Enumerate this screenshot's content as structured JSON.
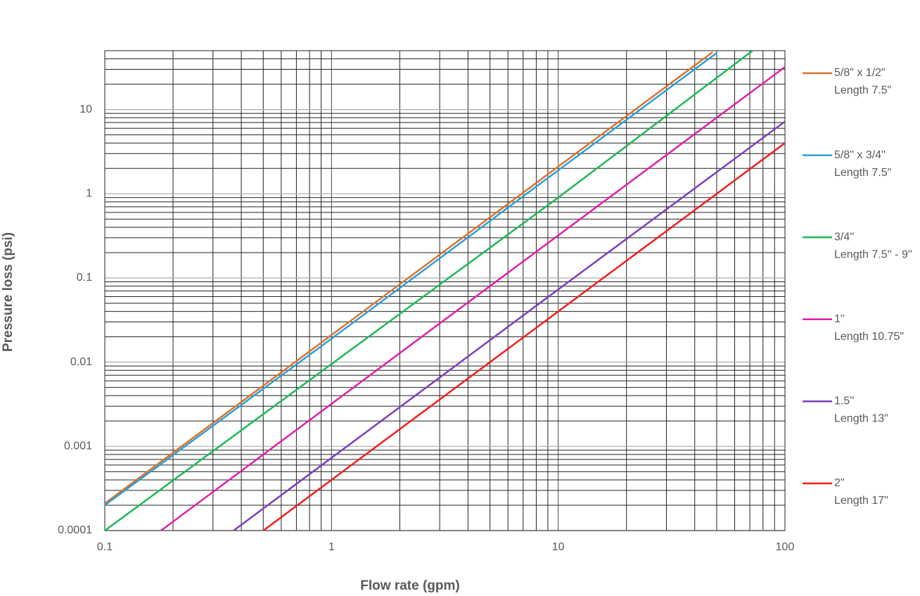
{
  "chart_data": {
    "type": "line",
    "x_label": "Flow rate (gpm)",
    "y_label": "Pressure loss (psi)",
    "xscale": "log",
    "yscale": "log",
    "xlim": [
      0.1,
      100
    ],
    "ylim": [
      0.0001,
      50
    ],
    "xticks": [
      0.1,
      1,
      10,
      100
    ],
    "yticks": [
      0.0001,
      0.001,
      0.01,
      0.1,
      1,
      10
    ],
    "grid": true,
    "minor_grid": true,
    "legend_position": "right",
    "series": [
      {
        "name": "5/8\" x 1/2\"",
        "length": "Length 7.5\"",
        "color": "#e0702a",
        "x": [
          0.1,
          1,
          10,
          48
        ],
        "values": [
          0.00021,
          0.021,
          2.1,
          48
        ]
      },
      {
        "name": "5/8\" x 3/4''",
        "length": "Length 7.5\"",
        "color": "#2aa0d8",
        "x": [
          0.1,
          1,
          10,
          50
        ],
        "values": [
          0.0002,
          0.019,
          1.9,
          47
        ]
      },
      {
        "name": "3/4''",
        "length": "Length 7.5'' - 9''",
        "color": "#1db954",
        "x": [
          0.1,
          1,
          10,
          72
        ],
        "values": [
          0.0001,
          0.0095,
          0.9,
          50
        ]
      },
      {
        "name": "1''",
        "length": "Length 10.75\"",
        "color": "#e020a8",
        "x": [
          0.177,
          1,
          10,
          100
        ],
        "values": [
          0.0001,
          0.0032,
          0.32,
          32
        ]
      },
      {
        "name": "1.5''",
        "length": "Length 13\"",
        "color": "#7b3fb8",
        "x": [
          0.37,
          1,
          10,
          100
        ],
        "values": [
          0.0001,
          0.00073,
          0.073,
          7.2
        ]
      },
      {
        "name": "2\"",
        "length": "Length 17\"",
        "color": "#f01e1e",
        "x": [
          0.5,
          1,
          10,
          100
        ],
        "values": [
          0.0001,
          0.0004,
          0.04,
          4
        ]
      }
    ]
  }
}
